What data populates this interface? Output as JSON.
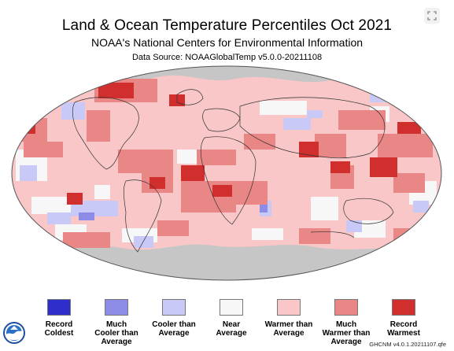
{
  "header": {
    "title": "Land & Ocean Temperature Percentiles Oct 2021",
    "subtitle": "NOAA's National Centers for Environmental Information",
    "source": "Data Source: NOAAGlobalTemp v5.0.0-20211108"
  },
  "controls": {
    "expand_icon": "expand-icon"
  },
  "legend": [
    {
      "label": "Record\nColdest",
      "color": "#2e2ecc"
    },
    {
      "label": "Much\nCooler than\nAverage",
      "color": "#8c8ce6"
    },
    {
      "label": "Cooler than\nAverage",
      "color": "#c9c9f7"
    },
    {
      "label": "Near\nAverage",
      "color": "#f7f7f7"
    },
    {
      "label": "Warmer than\nAverage",
      "color": "#f9c7c7"
    },
    {
      "label": "Much\nWarmer than\nAverage",
      "color": "#e98686"
    },
    {
      "label": "Record\nWarmest",
      "color": "#d12e2e"
    }
  ],
  "footer": {
    "credit": "GHCNM v4.0.1.20211107.qfe",
    "logo_icon": "noaa-logo-icon"
  },
  "map_colors": {
    "no_data": "#c6c6c6",
    "near": "#f7f7f7",
    "warm": "#f9c7c7",
    "much_warm": "#e98686",
    "record_warm": "#d12e2e",
    "cool": "#c9c9f7",
    "much_cool": "#8c8ce6"
  }
}
